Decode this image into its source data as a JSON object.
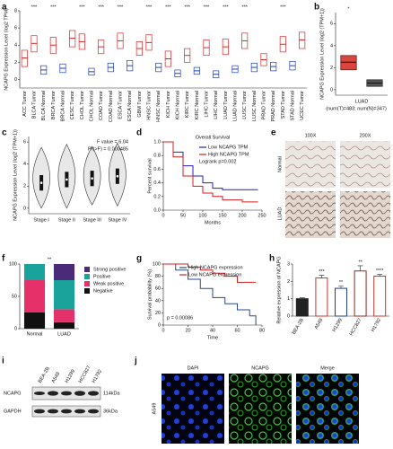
{
  "chart_data": [
    {
      "type": "box",
      "label": "a",
      "ylabel": "NCAPG Expression Level (log2 TPM)",
      "categories": [
        "ACC Tumor",
        "BLCA Tumor",
        "BLCA Normal",
        "BRCA Tumor",
        "BRCA Normal",
        "CESC Tumor",
        "CHOL Tumor",
        "CHOL Normal",
        "COAD Tumor",
        "COAD Normal",
        "ESCA Tumor",
        "ESCA Normal",
        "GBM Tumor",
        "HNSC Tumor",
        "HNSC Normal",
        "KICH Tumor",
        "KICH Normal",
        "KIRC Tumor",
        "KIRC Normal",
        "LIHC Tumor",
        "LIHC Normal",
        "LUAD Tumor",
        "LUAD Normal",
        "LUSC Tumor",
        "LUSC Normal",
        "PRAD Tumor",
        "PRAD Normal",
        "STAD Tumor",
        "STAD Normal",
        "UCEC Tumor"
      ],
      "q1": [
        1.5,
        3.2,
        0.6,
        3.0,
        0.8,
        3.8,
        3.5,
        0.5,
        3.0,
        0.9,
        3.6,
        1.0,
        2.8,
        3.4,
        0.9,
        1.5,
        0.3,
        2.0,
        0.6,
        2.8,
        0.2,
        2.9,
        0.8,
        3.6,
        0.9,
        1.6,
        1.0,
        3.2,
        1.1,
        3.6
      ],
      "median": [
        2.5,
        4.2,
        1.1,
        4.0,
        1.3,
        4.8,
        4.4,
        0.9,
        3.8,
        1.4,
        4.5,
        1.6,
        3.6,
        4.3,
        1.4,
        2.4,
        0.7,
        2.8,
        1.0,
        3.7,
        0.6,
        3.8,
        1.2,
        4.5,
        1.4,
        2.3,
        1.5,
        4.1,
        1.6,
        4.6
      ],
      "q3": [
        3.4,
        5.1,
        1.6,
        4.9,
        1.8,
        5.7,
        5.3,
        1.3,
        4.6,
        1.9,
        5.4,
        2.2,
        4.4,
        5.2,
        1.9,
        3.3,
        1.1,
        3.6,
        1.4,
        4.6,
        1.0,
        4.7,
        1.6,
        5.4,
        1.9,
        3.0,
        2.0,
        5.0,
        2.1,
        5.5
      ],
      "colors": [
        "#d62728",
        "#d62728",
        "#1f3fbf",
        "#d62728",
        "#1f3fbf",
        "#d62728",
        "#d62728",
        "#1f3fbf",
        "#d62728",
        "#1f3fbf",
        "#d62728",
        "#1f3fbf",
        "#d62728",
        "#d62728",
        "#1f3fbf",
        "#d62728",
        "#1f3fbf",
        "#d62728",
        "#1f3fbf",
        "#d62728",
        "#1f3fbf",
        "#d62728",
        "#1f3fbf",
        "#d62728",
        "#1f3fbf",
        "#d62728",
        "#1f3fbf",
        "#d62728",
        "#1f3fbf",
        "#d62728"
      ],
      "stars": [
        null,
        "***",
        null,
        "***",
        null,
        null,
        "***",
        null,
        "***",
        null,
        "***",
        null,
        null,
        "***",
        null,
        "***",
        null,
        "***",
        null,
        "***",
        null,
        "***",
        null,
        "***",
        null,
        null,
        null,
        "***",
        null,
        null
      ],
      "filled": false,
      "ylim": [
        -1,
        8
      ],
      "yticks": [
        0,
        2,
        4,
        6,
        8
      ]
    },
    {
      "type": "box",
      "label": "b",
      "ylabel": "NCAPG Expression Level (log2 (TPM+1))",
      "xlabel": "LUAD",
      "note": "(num(T)=483; num(N)=347)",
      "categories": [
        null,
        null
      ],
      "q1": [
        1.8,
        0.3
      ],
      "median": [
        2.5,
        0.6
      ],
      "q3": [
        3.1,
        0.9
      ],
      "colors": [
        "#d9463e",
        "#555555"
      ],
      "stars": [
        "*",
        null
      ],
      "filled": true,
      "ylim": [
        -0.5,
        7
      ],
      "yticks": [
        0,
        2,
        4,
        6
      ]
    },
    {
      "type": "violin",
      "label": "c",
      "ylabel": "NCAPG Expression Level (log2 (TPM+1))",
      "categories": [
        "Stage I",
        "Stage II",
        "Stage III",
        "Stage IV"
      ],
      "min": [
        0,
        0,
        0.3,
        0.2
      ],
      "q1": [
        1.6,
        1.9,
        2.0,
        2.2
      ],
      "median": [
        2.3,
        2.6,
        2.7,
        2.9
      ],
      "q3": [
        3.0,
        3.3,
        3.4,
        3.6
      ],
      "max": [
        5.5,
        5.8,
        5.6,
        5.9
      ],
      "color": "#e8e8e8",
      "annotations": [
        "F value = 6.04",
        "Pr(>F) = 0.000485"
      ],
      "ylim": [
        -0.5,
        6.5
      ],
      "yticks": [
        0,
        2,
        4,
        6
      ]
    },
    {
      "type": "km",
      "label": "d",
      "title": "Overall Survival",
      "xlabel": "Months",
      "ylabel": "Percent survival",
      "series": [
        {
          "name": "Low NCAPG TPM",
          "color": "#1f1fd0",
          "x": [
            0,
            25,
            50,
            75,
            100,
            125,
            150,
            200,
            240
          ],
          "values": [
            1,
            0.85,
            0.65,
            0.5,
            0.4,
            0.32,
            0.3,
            0.3,
            0.3
          ]
        },
        {
          "name": "High NCAPG TPM",
          "color": "#d01f1f",
          "x": [
            0,
            25,
            50,
            75,
            100,
            125,
            150,
            200,
            240
          ],
          "values": [
            1,
            0.78,
            0.5,
            0.35,
            0.25,
            0.2,
            0.15,
            0.12,
            0.12
          ]
        }
      ],
      "annotations": [
        "Logrank p=0.002"
      ],
      "xlim": [
        0,
        250
      ],
      "xticks": [
        0,
        50,
        100,
        150,
        200,
        250
      ],
      "ylim": [
        0,
        1
      ],
      "yticks": [
        {
          "value": 0,
          "label": "0.0"
        },
        {
          "value": 0.2,
          "label": "0.2"
        },
        {
          "value": 0.4,
          "label": "0.4"
        },
        {
          "value": 0.6,
          "label": "0.6"
        },
        {
          "value": 0.8,
          "label": "0.8"
        },
        {
          "value": 1,
          "label": "1.0"
        }
      ]
    },
    {
      "type": "stacked",
      "label": "f",
      "categories": [
        "Normal",
        "LUAD"
      ],
      "series": [
        {
          "name": "Negative",
          "color": "#111111",
          "values": [
            25,
            10
          ]
        },
        {
          "name": "Weak positive",
          "color": "#e6306a",
          "values": [
            50,
            20
          ]
        },
        {
          "name": "Positive",
          "color": "#1aa39a",
          "values": [
            25,
            45
          ]
        },
        {
          "name": "Strong positive",
          "color": "#4b2a7a",
          "values": [
            0,
            25
          ]
        }
      ],
      "annotations": [
        "**"
      ],
      "ylim": [
        0,
        100
      ],
      "yticks": [
        0,
        50,
        100
      ]
    },
    {
      "type": "km",
      "label": "g",
      "xlabel": "Time",
      "ylabel": "Survival probability (%)",
      "series": [
        {
          "name": "High NCAPG expression",
          "color": "#2a4a8a",
          "x": [
            0,
            10,
            20,
            30,
            40,
            50,
            60,
            70,
            75
          ],
          "values": [
            100,
            90,
            75,
            60,
            45,
            35,
            25,
            15,
            0
          ]
        },
        {
          "name": "Low NCAPG expression",
          "color": "#d02020",
          "x": [
            0,
            10,
            20,
            30,
            40,
            50,
            60,
            70,
            75
          ],
          "values": [
            100,
            100,
            95,
            90,
            85,
            80,
            70,
            70,
            70
          ]
        }
      ],
      "annotations": [
        "p = 0.00086"
      ],
      "xlim": [
        0,
        80
      ],
      "xticks": [
        0,
        20,
        40,
        60,
        80
      ],
      "ylim": [
        0,
        100
      ],
      "yticks": [
        0,
        20,
        40,
        60,
        80,
        100
      ]
    },
    {
      "type": "bar",
      "label": "h",
      "ylabel": "Relative expression of NCAPG",
      "categories": [
        "BEA-2B",
        "A549",
        "H1299",
        "HCC827",
        "H1792"
      ],
      "values": [
        1,
        2.2,
        1.6,
        2.6,
        2.3
      ],
      "errors": [
        0.05,
        0.15,
        0.12,
        0.3,
        0.1
      ],
      "colors": [
        "#222222",
        "#c0392b",
        "#1f3f8f",
        "#a02020",
        "#c0392b"
      ],
      "stars": [
        null,
        "***",
        "**",
        "**",
        "****"
      ],
      "ylim": [
        0,
        3
      ],
      "yticks": [
        0,
        1,
        2,
        3
      ]
    }
  ],
  "figures": {
    "e": {
      "label": "e",
      "columns": [
        "100X",
        "200X"
      ],
      "rows": [
        "Normal",
        "LUAD"
      ]
    },
    "i": {
      "label": "i",
      "lanes": [
        "BEA-2B",
        "A549",
        "H1299",
        "HCC827",
        "H1792"
      ],
      "proteins": [
        "NCAPG",
        "GAPDH"
      ],
      "sizes": [
        "114kDa",
        "36kDa"
      ]
    },
    "j": {
      "label": "j",
      "columns": [
        "DAPI",
        "NCAPG",
        "Merge"
      ],
      "row": "A549"
    }
  }
}
